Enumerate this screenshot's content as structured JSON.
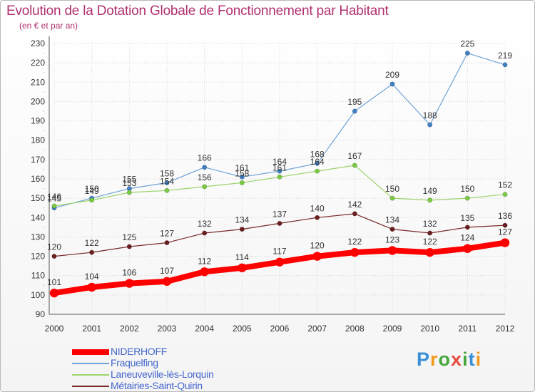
{
  "header": {
    "title": "Evolution de la Dotation Globale de Fonctionnement par Habitant",
    "subtitle": "(en € et par an)"
  },
  "logo": {
    "text": "Proxiti",
    "letters": [
      "P",
      "r",
      "o",
      "x",
      "i",
      "t",
      "i"
    ],
    "colors": [
      "#3b8fd6",
      "#f29a1f",
      "#46a83c",
      "#e84c3d",
      "#46a83c",
      "#3b8fd6",
      "#f29a1f"
    ]
  },
  "chart_data": {
    "type": "line",
    "title": "Evolution de la Dotation Globale de Fonctionnement par Habitant",
    "subtitle": "(en € et par an)",
    "x": [
      "2000",
      "2001",
      "2002",
      "2003",
      "2004",
      "2005",
      "2006",
      "2007",
      "2008",
      "2009",
      "2010",
      "2011",
      "2012"
    ],
    "ylim": [
      90,
      230
    ],
    "yticks": [
      90,
      100,
      110,
      120,
      130,
      140,
      150,
      160,
      170,
      180,
      190,
      200,
      210,
      220,
      230
    ],
    "grid": true,
    "legend_position": "bottom-left",
    "series": [
      {
        "name": "Fraquelfing",
        "color": "#6fa3d6",
        "point_color": "#3f7fc4",
        "width": 1.2,
        "radius": 3.2,
        "values": [
          145,
          150,
          155,
          158,
          166,
          161,
          164,
          168,
          195,
          209,
          188,
          225,
          219
        ]
      },
      {
        "name": "Laneuveville-lès-Lorquin",
        "color": "#9dd46c",
        "point_color": "#7ac943",
        "width": 1.2,
        "radius": 3.2,
        "values": [
          146,
          149,
          153,
          154,
          156,
          158,
          161,
          164,
          167,
          150,
          149,
          150,
          152
        ]
      },
      {
        "name": "Métairies-Saint-Quirin",
        "color": "#7a2a2a",
        "point_color": "#6b1e1e",
        "width": 1.2,
        "radius": 3.2,
        "values": [
          120,
          122,
          125,
          127,
          132,
          134,
          137,
          140,
          142,
          134,
          132,
          135,
          136
        ]
      },
      {
        "name": "NIDERHOFF",
        "color": "#ff0000",
        "point_color": "#ff0000",
        "width": 8,
        "radius": 6.2,
        "values": [
          101,
          104,
          106,
          107,
          112,
          114,
          117,
          120,
          122,
          123,
          122,
          124,
          127
        ]
      }
    ],
    "legend_order": [
      "NIDERHOFF",
      "Fraquelfing",
      "Laneuveville-lès-Lorquin",
      "Métairies-Saint-Quirin"
    ]
  }
}
